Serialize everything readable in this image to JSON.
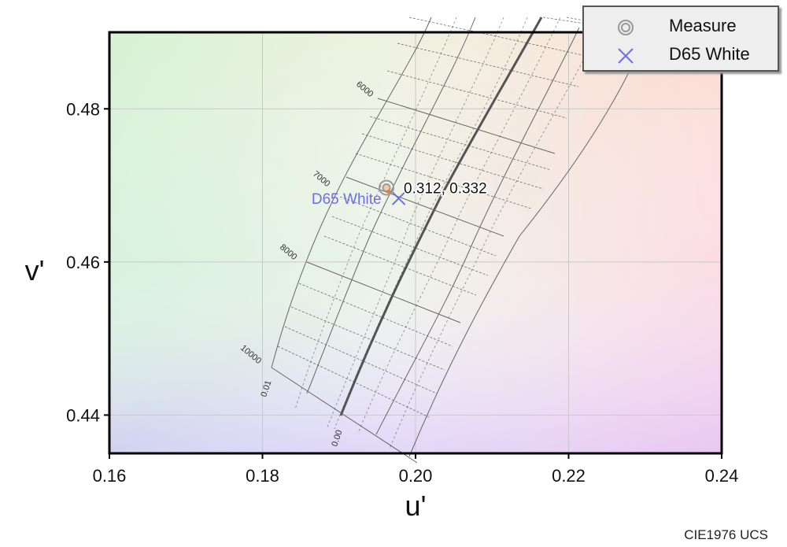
{
  "chart_data": {
    "type": "scatter",
    "xlabel": "u'",
    "ylabel": "v'",
    "xlim": [
      0.16,
      0.24
    ],
    "ylim": [
      0.435,
      0.49
    ],
    "x_ticks": [
      "0.16",
      "0.18",
      "0.20",
      "0.22",
      "0.24"
    ],
    "y_ticks": [
      "0.44",
      "0.46",
      "0.48"
    ],
    "grid": true,
    "legend_position": "top-right",
    "series": [
      {
        "name": "Measure",
        "x": [
          0.1962
        ],
        "y": [
          0.4697
        ],
        "color": "#888888",
        "marker": "double-circle"
      },
      {
        "name": "D65 White",
        "x": [
          0.1978
        ],
        "y": [
          0.4683
        ],
        "color": "#6f6fe6",
        "marker": "x"
      }
    ],
    "point_annotations": [
      {
        "text": "0.312,  0.332",
        "series": "Measure"
      },
      {
        "text": "D65 White",
        "series": "D65 White"
      }
    ],
    "cct_labels": [
      "6000",
      "7000",
      "8000",
      "10000"
    ],
    "duv_labels": [
      "0.01",
      "0.00"
    ],
    "footer": "CIE1976 UCS"
  }
}
